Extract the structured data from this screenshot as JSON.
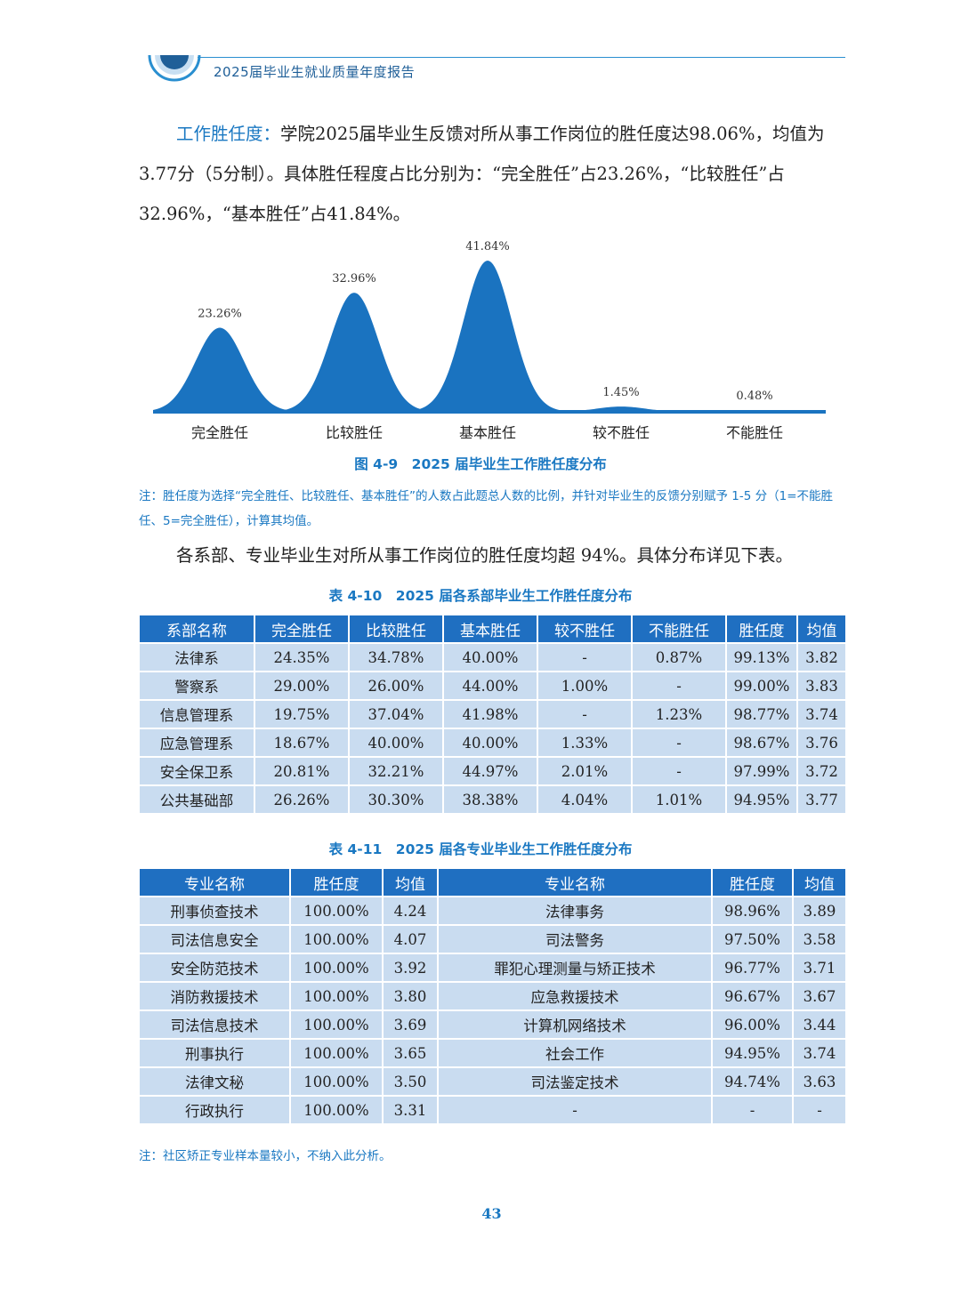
{
  "header": {
    "title": "2025届毕业生就业质量年度报告"
  },
  "intro": {
    "lead": "工作胜任度：",
    "text": "学院2025届毕业生反馈对所从事工作岗位的胜任度达98.06%，均值为3.77分（5分制）。具体胜任程度占比分别为：“完全胜任”占23.26%，“比较胜任”占32.96%，“基本胜任”占41.84%。"
  },
  "chart_data": {
    "type": "area",
    "categories": [
      "完全胜任",
      "比较胜任",
      "基本胜任",
      "较不胜任",
      "不能胜任"
    ],
    "values": [
      23.26,
      32.96,
      41.84,
      1.45,
      0.48
    ],
    "data_labels": [
      "23.26%",
      "32.96%",
      "41.84%",
      "1.45%",
      "0.48%"
    ],
    "color": "#1a73c0"
  },
  "figure_caption": "图 4-9　2025 届毕业生工作胜任度分布",
  "figure_note": "注：胜任度为选择“完全胜任、比较胜任、基本胜任”的人数占此题总人数的比例，并针对毕业生的反馈分别赋予 1-5 分（1=不能胜任、5=完全胜任），计算其均值。",
  "para2": "各系部、专业毕业生对所从事工作岗位的胜任度均超 94%。具体分布详见下表。",
  "table1": {
    "caption": "表 4-10　2025 届各系部毕业生工作胜任度分布",
    "headers": [
      "系部名称",
      "完全胜任",
      "比较胜任",
      "基本胜任",
      "较不胜任",
      "不能胜任",
      "胜任度",
      "均值"
    ],
    "rows": [
      [
        "法律系",
        "24.35%",
        "34.78%",
        "40.00%",
        "-",
        "0.87%",
        "99.13%",
        "3.82"
      ],
      [
        "警察系",
        "29.00%",
        "26.00%",
        "44.00%",
        "1.00%",
        "-",
        "99.00%",
        "3.83"
      ],
      [
        "信息管理系",
        "19.75%",
        "37.04%",
        "41.98%",
        "-",
        "1.23%",
        "98.77%",
        "3.74"
      ],
      [
        "应急管理系",
        "18.67%",
        "40.00%",
        "40.00%",
        "1.33%",
        "-",
        "98.67%",
        "3.76"
      ],
      [
        "安全保卫系",
        "20.81%",
        "32.21%",
        "44.97%",
        "2.01%",
        "-",
        "97.99%",
        "3.72"
      ],
      [
        "公共基础部",
        "26.26%",
        "30.30%",
        "38.38%",
        "4.04%",
        "1.01%",
        "94.95%",
        "3.77"
      ]
    ]
  },
  "table2": {
    "caption": "表 4-11　2025 届各专业毕业生工作胜任度分布",
    "headers": [
      "专业名称",
      "胜任度",
      "均值",
      "专业名称",
      "胜任度",
      "均值"
    ],
    "rows": [
      [
        "刑事侦查技术",
        "100.00%",
        "4.24",
        "法律事务",
        "98.96%",
        "3.89"
      ],
      [
        "司法信息安全",
        "100.00%",
        "4.07",
        "司法警务",
        "97.50%",
        "3.58"
      ],
      [
        "安全防范技术",
        "100.00%",
        "3.92",
        "罪犯心理测量与矫正技术",
        "96.77%",
        "3.71"
      ],
      [
        "消防救援技术",
        "100.00%",
        "3.80",
        "应急救援技术",
        "96.67%",
        "3.67"
      ],
      [
        "司法信息技术",
        "100.00%",
        "3.69",
        "计算机网络技术",
        "96.00%",
        "3.44"
      ],
      [
        "刑事执行",
        "100.00%",
        "3.65",
        "社会工作",
        "94.95%",
        "3.74"
      ],
      [
        "法律文秘",
        "100.00%",
        "3.50",
        "司法鉴定技术",
        "94.74%",
        "3.63"
      ],
      [
        "行政执行",
        "100.00%",
        "3.31",
        "-",
        "-",
        "-"
      ]
    ]
  },
  "table_note": "注：社区矫正专业样本量较小，不纳入此分析。",
  "page_number": "43"
}
